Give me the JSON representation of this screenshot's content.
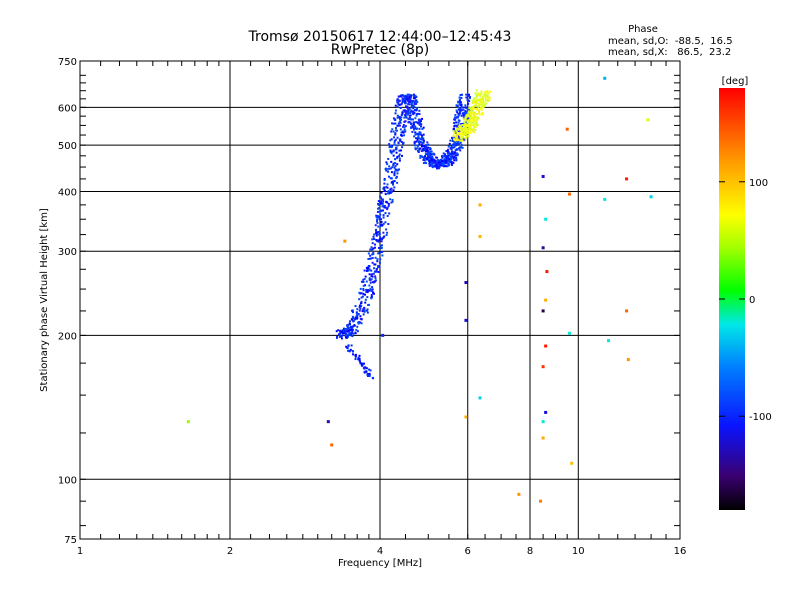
{
  "chart_data": {
    "type": "scatter",
    "title": "Tromsø 20150617 12:44:00–12:45:43",
    "subtitle": "RwPretec (8p)",
    "xlabel": "Frequency [MHz]",
    "ylabel": "Stationary phase Virtual Height [km]",
    "x_scale": "log",
    "y_scale": "log",
    "xlim": [
      1,
      16
    ],
    "ylim": [
      75,
      750
    ],
    "x_ticks": [
      {
        "value": 1,
        "label": "1"
      },
      {
        "value": 2,
        "label": "2"
      },
      {
        "value": 4,
        "label": "4"
      },
      {
        "value": 6,
        "label": "6"
      },
      {
        "value": 8,
        "label": "8"
      },
      {
        "value": 10,
        "label": "10"
      },
      {
        "value": 16,
        "label": "16"
      }
    ],
    "x_grid": [
      2,
      4,
      6,
      8,
      10
    ],
    "y_ticks": [
      {
        "value": 75,
        "label": "75"
      },
      {
        "value": 100,
        "label": "100"
      },
      {
        "value": 200,
        "label": "200"
      },
      {
        "value": 300,
        "label": "300"
      },
      {
        "value": 400,
        "label": "400"
      },
      {
        "value": 500,
        "label": "500"
      },
      {
        "value": 600,
        "label": "600"
      },
      {
        "value": 750,
        "label": "750"
      }
    ],
    "y_grid": [
      100,
      200,
      300,
      400,
      500,
      600
    ],
    "phase_info": {
      "heading": "Phase",
      "line_o": "mean, sd,O:  -88.5,  16.5",
      "line_x": "mean, sd,X:   86.5,  23.2"
    },
    "colorbar": {
      "label": "[deg]",
      "range": [
        -180,
        180
      ],
      "ticks": [
        {
          "value": 100,
          "label": "100"
        },
        {
          "value": 0,
          "label": "0"
        },
        {
          "value": -100,
          "label": "-100"
        }
      ]
    },
    "o_trace": [
      {
        "f": 3.35,
        "h": 200
      },
      {
        "f": 3.5,
        "h": 205
      },
      {
        "f": 3.7,
        "h": 230
      },
      {
        "f": 3.85,
        "h": 270
      },
      {
        "f": 4.0,
        "h": 320
      },
      {
        "f": 4.1,
        "h": 380
      },
      {
        "f": 4.25,
        "h": 450
      },
      {
        "f": 4.35,
        "h": 530
      },
      {
        "f": 4.45,
        "h": 620
      },
      {
        "f": 4.6,
        "h": 630
      },
      {
        "f": 4.7,
        "h": 560
      },
      {
        "f": 4.85,
        "h": 500
      },
      {
        "f": 5.0,
        "h": 470
      },
      {
        "f": 5.2,
        "h": 455
      },
      {
        "f": 5.4,
        "h": 460
      },
      {
        "f": 5.6,
        "h": 480
      },
      {
        "f": 5.75,
        "h": 520
      },
      {
        "f": 5.85,
        "h": 580
      },
      {
        "f": 5.9,
        "h": 630
      }
    ],
    "o_tail": [
      {
        "f": 3.45,
        "h": 190
      },
      {
        "f": 3.6,
        "h": 180
      },
      {
        "f": 3.75,
        "h": 170
      },
      {
        "f": 3.85,
        "h": 163
      }
    ],
    "x_trace": [
      {
        "f": 5.75,
        "h": 520
      },
      {
        "f": 5.9,
        "h": 535
      },
      {
        "f": 6.05,
        "h": 550
      },
      {
        "f": 6.2,
        "h": 580
      },
      {
        "f": 6.35,
        "h": 620
      },
      {
        "f": 6.45,
        "h": 640
      }
    ],
    "scatter": [
      {
        "f": 1.65,
        "h": 132,
        "phase": 40
      },
      {
        "f": 3.15,
        "h": 132,
        "phase": -130
      },
      {
        "f": 3.2,
        "h": 118,
        "phase": 140
      },
      {
        "f": 3.4,
        "h": 315,
        "phase": 120
      },
      {
        "f": 4.05,
        "h": 200,
        "phase": -100
      },
      {
        "f": 5.95,
        "h": 135,
        "phase": 110
      },
      {
        "f": 5.95,
        "h": 258,
        "phase": -130
      },
      {
        "f": 5.95,
        "h": 215,
        "phase": -120
      },
      {
        "f": 6.35,
        "h": 375,
        "phase": 110
      },
      {
        "f": 6.35,
        "h": 322,
        "phase": 105
      },
      {
        "f": 6.35,
        "h": 148,
        "phase": -30
      },
      {
        "f": 7.6,
        "h": 93,
        "phase": 120
      },
      {
        "f": 8.4,
        "h": 90,
        "phase": 130
      },
      {
        "f": 8.5,
        "h": 430,
        "phase": -120
      },
      {
        "f": 8.5,
        "h": 305,
        "phase": -140
      },
      {
        "f": 8.5,
        "h": 225,
        "phase": -160
      },
      {
        "f": 8.5,
        "h": 172,
        "phase": 160
      },
      {
        "f": 8.5,
        "h": 132,
        "phase": -20
      },
      {
        "f": 8.5,
        "h": 122,
        "phase": 110
      },
      {
        "f": 8.6,
        "h": 350,
        "phase": -20
      },
      {
        "f": 8.65,
        "h": 272,
        "phase": 170
      },
      {
        "f": 8.6,
        "h": 237,
        "phase": 110
      },
      {
        "f": 8.6,
        "h": 190,
        "phase": 170
      },
      {
        "f": 8.6,
        "h": 138,
        "phase": -120
      },
      {
        "f": 9.5,
        "h": 540,
        "phase": 140
      },
      {
        "f": 9.6,
        "h": 395,
        "phase": 140
      },
      {
        "f": 9.6,
        "h": 202,
        "phase": -20
      },
      {
        "f": 9.7,
        "h": 108,
        "phase": 100
      },
      {
        "f": 11.3,
        "h": 690,
        "phase": -40
      },
      {
        "f": 11.3,
        "h": 385,
        "phase": -20
      },
      {
        "f": 11.5,
        "h": 195,
        "phase": -20
      },
      {
        "f": 12.5,
        "h": 425,
        "phase": 170
      },
      {
        "f": 12.5,
        "h": 225,
        "phase": 140
      },
      {
        "f": 12.6,
        "h": 178,
        "phase": 120
      },
      {
        "f": 13.8,
        "h": 565,
        "phase": 60
      },
      {
        "f": 14.0,
        "h": 390,
        "phase": -30
      }
    ]
  }
}
